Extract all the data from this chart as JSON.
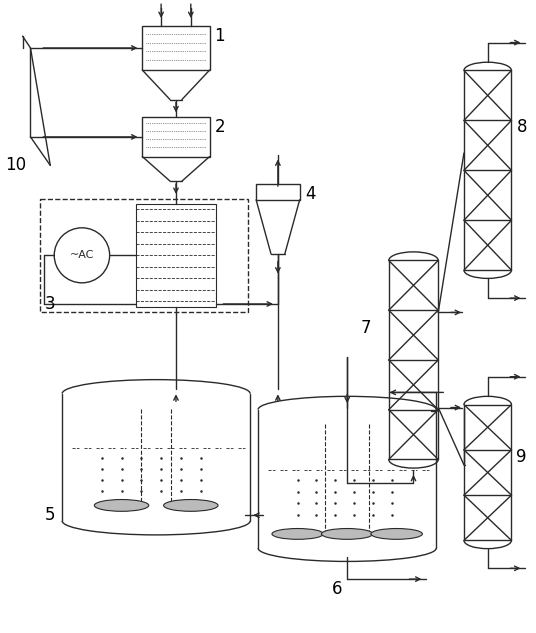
{
  "bg_color": "#ffffff",
  "line_color": "#2a2a2a",
  "label_color": "#000000",
  "lw": 1.0
}
